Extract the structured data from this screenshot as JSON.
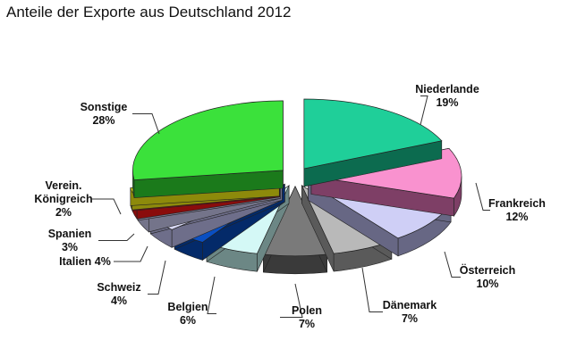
{
  "chart_data": {
    "type": "pie",
    "title": "Anteile der Exporte aus Deutschland 2012",
    "unit": "%",
    "slices": [
      {
        "label": "Niederlande",
        "value_text": "19%",
        "value": 19,
        "color": "#1fcf99",
        "dark": "#0c6b4f"
      },
      {
        "label": "Frankreich",
        "value_text": "12%",
        "value": 12,
        "color": "#f992cf",
        "dark": "#7e3f66"
      },
      {
        "label": "Österreich",
        "value_text": "10%",
        "value": 10,
        "color": "#cfcff6",
        "dark": "#676784"
      },
      {
        "label": "Dänemark",
        "value_text": "7%",
        "value": 7,
        "color": "#b9b9b9",
        "dark": "#5a5a5a"
      },
      {
        "label": "Polen",
        "value_text": "7%",
        "value": 7,
        "color": "#7a7a7a",
        "dark": "#3a3a3a"
      },
      {
        "label": "Belgien",
        "value_text": "6%",
        "value": 6,
        "color": "#d4f8f6",
        "dark": "#6c8785"
      },
      {
        "label": "Schweiz",
        "value_text": "4%",
        "value": 4,
        "color": "#0a4fc2",
        "dark": "#042a69"
      },
      {
        "label": "Italien",
        "value_text": "4%",
        "value": 4,
        "color": "#d6d6f2",
        "dark": "#6e6e8a"
      },
      {
        "label": "Spanien",
        "value_text": "3%",
        "value": 3,
        "color": "#d9d9f0",
        "dark": "#74748a"
      },
      {
        "label": "Verein. Königreich",
        "value_text": "2%",
        "value": 2,
        "color": "#ff1a1a",
        "dark": "#8a0c0c"
      },
      {
        "label": "",
        "value_text": "",
        "value": 1,
        "color": "#f7f21a",
        "dark": "#8d8a0b"
      },
      {
        "label": "Sonstige",
        "value_text": "28%",
        "value": 28,
        "color": "#3be13b",
        "dark": "#1b7a1b"
      }
    ]
  }
}
